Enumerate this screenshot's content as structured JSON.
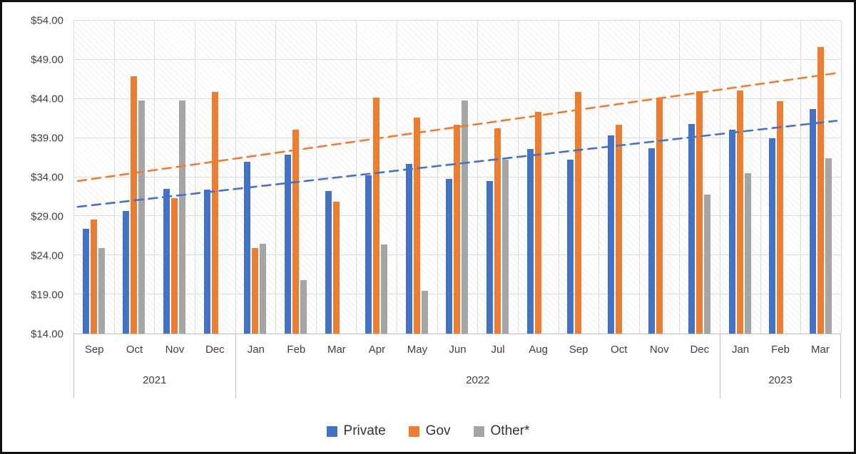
{
  "colors": {
    "private": "#4472C4",
    "gov": "#ED7D31",
    "other": "#A5A5A5",
    "gridline": "#DCDCDC",
    "axis_text": "#404040"
  },
  "chart_data": {
    "type": "bar",
    "title": "",
    "xlabel": "",
    "ylabel": "",
    "ylim": [
      14,
      54
    ],
    "grid": {
      "horizontal": true,
      "vertical": true
    },
    "plot_background": "diagonal-hatch",
    "y_ticks": [
      14,
      19,
      24,
      29,
      34,
      39,
      44,
      49,
      54
    ],
    "y_tick_labels": [
      "$14.00",
      "$19.00",
      "$24.00",
      "$29.00",
      "$34.00",
      "$39.00",
      "$44.00",
      "$49.00",
      "$54.00"
    ],
    "categories": [
      "Sep",
      "Oct",
      "Nov",
      "Dec",
      "Jan",
      "Feb",
      "Mar",
      "Apr",
      "May",
      "Jun",
      "Jul",
      "Aug",
      "Sep",
      "Oct",
      "Nov",
      "Dec",
      "Jan",
      "Feb",
      "Mar"
    ],
    "year_groups": [
      {
        "label": "2021",
        "span": 4
      },
      {
        "label": "2022",
        "span": 12
      },
      {
        "label": "2023",
        "span": 3
      }
    ],
    "series": [
      {
        "name": "Private",
        "color": "#4472C4",
        "values": [
          27.4,
          29.7,
          32.5,
          32.4,
          36.0,
          36.9,
          32.2,
          34.2,
          35.7,
          33.8,
          33.5,
          37.6,
          36.2,
          39.3,
          37.7,
          40.8,
          40.1,
          39.0,
          42.7
        ]
      },
      {
        "name": "Gov",
        "color": "#ED7D31",
        "values": [
          28.6,
          46.9,
          31.3,
          44.9,
          24.9,
          40.1,
          30.9,
          44.2,
          41.6,
          40.7,
          40.2,
          42.3,
          44.9,
          40.7,
          44.2,
          45.0,
          45.1,
          43.7,
          50.6
        ]
      },
      {
        "name": "Other*",
        "color": "#A5A5A5",
        "values": [
          24.9,
          43.8,
          43.8,
          null,
          25.5,
          20.8,
          null,
          25.4,
          19.5,
          43.8,
          36.2,
          null,
          null,
          null,
          null,
          31.8,
          34.5,
          null,
          36.4
        ]
      }
    ],
    "trendlines": [
      {
        "series": "Private",
        "color": "#4472C4",
        "style": "dashed",
        "start_value": 30.2,
        "end_value": 41.2
      },
      {
        "series": "Gov",
        "color": "#ED7D31",
        "style": "dashed",
        "start_value": 33.5,
        "end_value": 47.3
      }
    ],
    "legend": {
      "position": "bottom",
      "entries": [
        "Private",
        "Gov",
        "Other*"
      ]
    }
  }
}
